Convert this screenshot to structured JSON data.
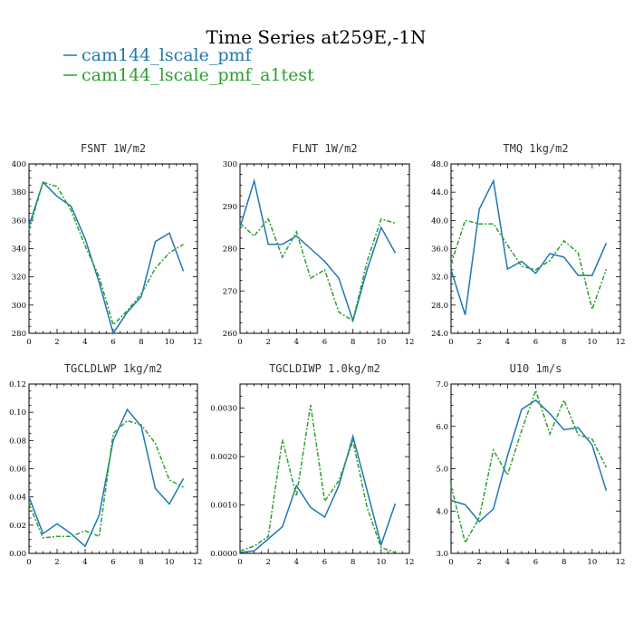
{
  "figure": {
    "title": "Time Series at259E,-1N",
    "legend": [
      {
        "label": "cam144_lscale_pmf",
        "color": "#1f77b4",
        "dash": "solid"
      },
      {
        "label": "cam144_lscale_pmf_a1test",
        "color": "#2ca02c",
        "dash": "dashed"
      }
    ]
  },
  "chart_data": [
    {
      "type": "line",
      "title": "FSNT  1W/m2",
      "x": [
        0,
        1,
        2,
        3,
        4,
        5,
        6,
        7,
        8,
        9,
        10,
        11
      ],
      "xticks": [
        0,
        2,
        4,
        6,
        8,
        10,
        12
      ],
      "xlim": [
        0,
        12
      ],
      "ylim": [
        280,
        400
      ],
      "yticks": [
        "280",
        "300",
        "320",
        "340",
        "360",
        "380",
        "400"
      ],
      "series": [
        {
          "name": "cam144_lscale_pmf",
          "values": [
            356,
            387,
            377,
            370,
            347,
            316,
            280,
            295,
            306,
            345,
            351,
            324
          ]
        },
        {
          "name": "cam144_lscale_pmf_a1test",
          "values": [
            353,
            387,
            384,
            367,
            342,
            320,
            286,
            296,
            308,
            326,
            337,
            343
          ]
        }
      ]
    },
    {
      "type": "line",
      "title": "FLNT  1W/m2",
      "x": [
        0,
        1,
        2,
        3,
        4,
        5,
        6,
        7,
        8,
        9,
        10,
        11
      ],
      "xticks": [
        0,
        2,
        4,
        6,
        8,
        10,
        12
      ],
      "xlim": [
        0,
        12
      ],
      "ylim": [
        260,
        300
      ],
      "yticks": [
        "260",
        "270",
        "280",
        "290",
        "300"
      ],
      "series": [
        {
          "name": "cam144_lscale_pmf",
          "values": [
            285,
            296,
            281,
            281,
            283,
            280,
            277,
            273,
            263,
            275,
            285,
            279
          ]
        },
        {
          "name": "cam144_lscale_pmf_a1test",
          "values": [
            286,
            283,
            287,
            278,
            284,
            273,
            275,
            265,
            263,
            277,
            287,
            286
          ]
        }
      ]
    },
    {
      "type": "line",
      "title": "TMQ  1kg/m2",
      "x": [
        0,
        1,
        2,
        3,
        4,
        5,
        6,
        7,
        8,
        9,
        10,
        11
      ],
      "xticks": [
        0,
        2,
        4,
        6,
        8,
        10,
        12
      ],
      "xlim": [
        0,
        12
      ],
      "ylim": [
        24,
        48
      ],
      "yticks": [
        "24.0",
        "28.0",
        "32.0",
        "36.0",
        "40.0",
        "44.0",
        "48.0"
      ],
      "series": [
        {
          "name": "cam144_lscale_pmf",
          "values": [
            33.0,
            26.6,
            41.6,
            45.6,
            33.1,
            34.2,
            32.5,
            35.3,
            34.8,
            32.2,
            32.2,
            36.8
          ]
        },
        {
          "name": "cam144_lscale_pmf_a1test",
          "values": [
            33.8,
            40.0,
            39.5,
            39.5,
            36.5,
            33.5,
            33.0,
            34.3,
            37.1,
            35.4,
            27.4,
            33.1
          ]
        }
      ]
    },
    {
      "type": "line",
      "title": "TGCLDLWP  1kg/m2",
      "x": [
        0,
        1,
        2,
        3,
        4,
        5,
        6,
        7,
        8,
        9,
        10,
        11
      ],
      "xticks": [
        0,
        2,
        4,
        6,
        8,
        10,
        12
      ],
      "xlim": [
        0,
        12
      ],
      "ylim": [
        0,
        0.12
      ],
      "yticks": [
        "0.00",
        "0.02",
        "0.04",
        "0.06",
        "0.08",
        "0.10",
        "0.12"
      ],
      "series": [
        {
          "name": "cam144_lscale_pmf",
          "values": [
            0.04,
            0.014,
            0.021,
            0.014,
            0.005,
            0.027,
            0.08,
            0.102,
            0.09,
            0.046,
            0.035,
            0.053
          ]
        },
        {
          "name": "cam144_lscale_pmf_a1test",
          "values": [
            0.035,
            0.011,
            0.012,
            0.012,
            0.016,
            0.012,
            0.085,
            0.094,
            0.091,
            0.078,
            0.052,
            0.047
          ]
        }
      ]
    },
    {
      "type": "line",
      "title": "TGCLDIWP  1.0kg/m2",
      "x": [
        0,
        1,
        2,
        3,
        4,
        5,
        6,
        7,
        8,
        9,
        10,
        11
      ],
      "xticks": [
        0,
        2,
        4,
        6,
        8,
        10,
        12
      ],
      "xlim": [
        0,
        12
      ],
      "ylim": [
        0,
        0.0035
      ],
      "yticks": [
        "0.0000",
        "0.0010",
        "0.0020",
        "0.0030"
      ],
      "yticksvals": [
        0,
        0.001,
        0.002,
        0.003
      ],
      "series": [
        {
          "name": "cam144_lscale_pmf",
          "values": [
            2e-05,
            5e-05,
            0.0003,
            0.00055,
            0.0014,
            0.00095,
            0.00075,
            0.0014,
            0.00242,
            0.0013,
            0.00018,
            0.00103
          ]
        },
        {
          "name": "cam144_lscale_pmf_a1test",
          "values": [
            5e-05,
            0.00015,
            0.00035,
            0.00235,
            0.00118,
            0.00307,
            0.00108,
            0.0015,
            0.00232,
            0.00095,
            0.00012,
            2e-05
          ]
        }
      ]
    },
    {
      "type": "line",
      "title": "U10  1m/s",
      "x": [
        0,
        1,
        2,
        3,
        4,
        5,
        6,
        7,
        8,
        9,
        10,
        11
      ],
      "xticks": [
        0,
        2,
        4,
        6,
        8,
        10,
        12
      ],
      "xlim": [
        0,
        12
      ],
      "ylim": [
        3,
        7
      ],
      "yticks": [
        "3.0",
        "4.0",
        "5.0",
        "6.0",
        "7.0"
      ],
      "series": [
        {
          "name": "cam144_lscale_pmf",
          "values": [
            4.25,
            4.15,
            3.75,
            4.05,
            5.3,
            6.4,
            6.62,
            6.3,
            5.92,
            5.97,
            5.56,
            4.48
          ]
        },
        {
          "name": "cam144_lscale_pmf_a1test",
          "values": [
            4.6,
            3.25,
            3.85,
            5.44,
            4.85,
            5.9,
            6.85,
            5.82,
            6.62,
            5.8,
            5.7,
            5.03
          ]
        }
      ]
    }
  ]
}
